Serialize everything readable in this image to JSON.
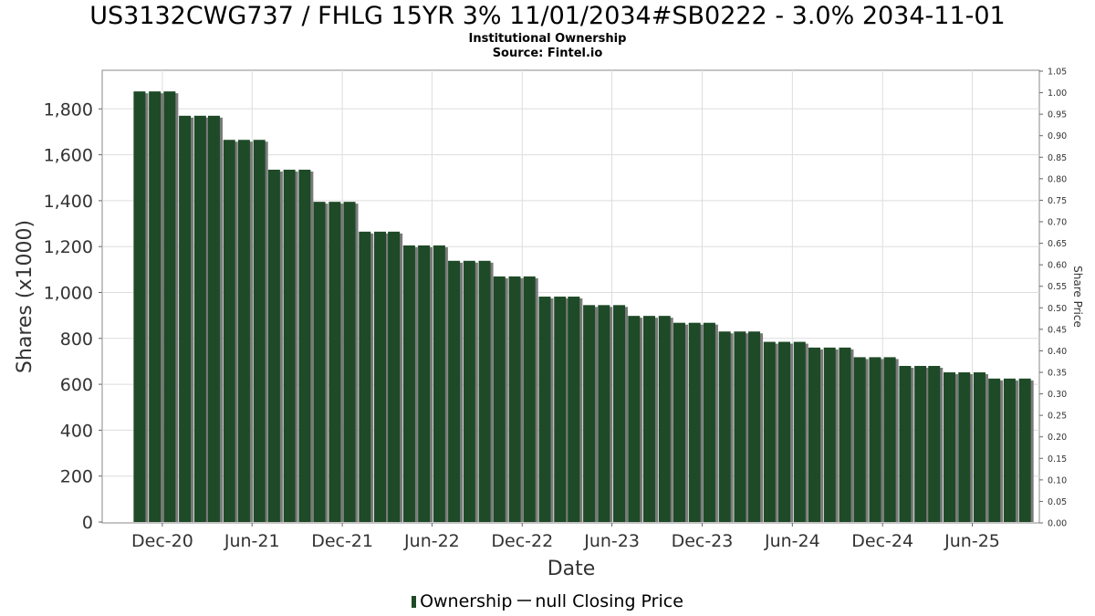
{
  "title": "US3132CWG737 / FHLG 15YR 3% 11/01/2034#SB0222 - 3.0% 2034-11-01",
  "subtitle": "Institutional Ownership",
  "source": "Source: Fintel.io",
  "legend": {
    "ownership": "Ownership",
    "price": "null Closing Price"
  },
  "colors": {
    "bar": "#1e4a27",
    "bar_shadow": "#7a7a7a",
    "grid": "#dddddd",
    "frame": "#888888"
  },
  "chart_data": {
    "type": "bar",
    "title": "US3132CWG737 / FHLG 15YR 3% 11/01/2034#SB0222 - 3.0% 2034-11-01",
    "subtitle": "Institutional Ownership",
    "xlabel": "Date",
    "ylabel": "Shares (x1000)",
    "y2label": "Share Price",
    "ylim": [
      0,
      1960
    ],
    "y2lim": [
      0,
      1.05
    ],
    "xlim": [
      "2020-08-01",
      "2025-10-15"
    ],
    "yticks": [
      "0",
      "200",
      "400",
      "600",
      "800",
      "1,000",
      "1,200",
      "1,400",
      "1,600",
      "1,800"
    ],
    "y2ticks": [
      "0.00",
      "0.05",
      "0.10",
      "0.15",
      "0.20",
      "0.25",
      "0.30",
      "0.35",
      "0.40",
      "0.45",
      "0.50",
      "0.55",
      "0.60",
      "0.65",
      "0.70",
      "0.75",
      "0.80",
      "0.85",
      "0.90",
      "0.95",
      "1.00",
      "1.05"
    ],
    "xticks": [
      {
        "label": "Dec-20",
        "date": "2020-12-01"
      },
      {
        "label": "Jun-21",
        "date": "2021-06-01"
      },
      {
        "label": "Dec-21",
        "date": "2021-12-01"
      },
      {
        "label": "Jun-22",
        "date": "2022-06-01"
      },
      {
        "label": "Dec-22",
        "date": "2022-12-01"
      },
      {
        "label": "Jun-23",
        "date": "2023-06-01"
      },
      {
        "label": "Dec-23",
        "date": "2023-12-01"
      },
      {
        "label": "Jun-24",
        "date": "2024-06-01"
      },
      {
        "label": "Dec-24",
        "date": "2024-12-01"
      },
      {
        "label": "Jun-25",
        "date": "2025-06-01"
      }
    ],
    "grid": true,
    "legend_position": "bottom",
    "series": [
      {
        "name": "Ownership",
        "x": [
          "2020-10",
          "2020-11",
          "2020-12",
          "2021-01",
          "2021-02",
          "2021-03",
          "2021-04",
          "2021-05",
          "2021-06",
          "2021-07",
          "2021-08",
          "2021-09",
          "2021-10",
          "2021-11",
          "2021-12",
          "2022-01",
          "2022-02",
          "2022-03",
          "2022-04",
          "2022-05",
          "2022-06",
          "2022-07",
          "2022-08",
          "2022-09",
          "2022-10",
          "2022-11",
          "2022-12",
          "2023-01",
          "2023-02",
          "2023-03",
          "2023-04",
          "2023-05",
          "2023-06",
          "2023-07",
          "2023-08",
          "2023-09",
          "2023-10",
          "2023-11",
          "2023-12",
          "2024-01",
          "2024-02",
          "2024-03",
          "2024-04",
          "2024-05",
          "2024-06",
          "2024-07",
          "2024-08",
          "2024-09",
          "2024-10",
          "2024-11",
          "2024-12",
          "2025-01",
          "2025-02",
          "2025-03",
          "2025-04",
          "2025-05",
          "2025-06",
          "2025-07",
          "2025-08",
          "2025-09"
        ],
        "values": [
          1876,
          1876,
          1876,
          1770,
          1770,
          1770,
          1665,
          1665,
          1665,
          1535,
          1535,
          1535,
          1395,
          1395,
          1395,
          1265,
          1265,
          1265,
          1205,
          1205,
          1205,
          1138,
          1138,
          1138,
          1070,
          1070,
          1070,
          982,
          982,
          982,
          945,
          945,
          945,
          898,
          898,
          898,
          868,
          868,
          868,
          830,
          830,
          830,
          785,
          785,
          785,
          760,
          760,
          760,
          718,
          718,
          718,
          680,
          680,
          680,
          652,
          652,
          652,
          625,
          625,
          625
        ]
      }
    ]
  }
}
